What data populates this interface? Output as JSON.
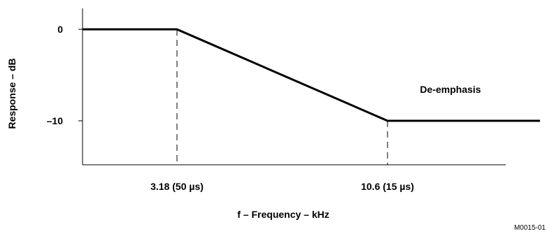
{
  "chart_data": {
    "type": "line",
    "title": "",
    "xlabel": "f – Frequency – kHz",
    "ylabel": "Response – dB",
    "series": [
      {
        "label": "De-emphasis",
        "x": [
          0,
          3.18,
          10.6,
          20
        ],
        "y": [
          0,
          0,
          -10,
          -10
        ],
        "color": "#000000"
      }
    ],
    "y_ticks": [
      {
        "value": 0,
        "label": "0"
      },
      {
        "value": -10,
        "label": "–10"
      }
    ],
    "x_ticks": [
      {
        "value": 3.18,
        "label": "3.18 (50 µs)"
      },
      {
        "value": 10.6,
        "label": "10.6 (15 µs)"
      }
    ],
    "ylim": [
      -15,
      2
    ],
    "grid": false,
    "legend": "none",
    "figure_id": "M0015-01"
  }
}
